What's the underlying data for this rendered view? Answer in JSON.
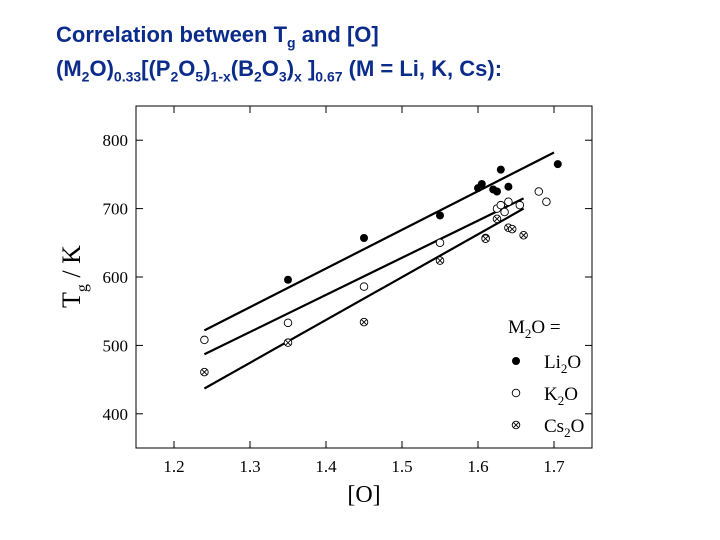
{
  "title": {
    "line1": {
      "main": "Correlation between T",
      "sub": "g",
      "after": " and [O]"
    },
    "line2": [
      {
        "t": "(M"
      },
      {
        "s": "2"
      },
      {
        "t": "O)"
      },
      {
        "s": "0.33"
      },
      {
        "t": "[(P"
      },
      {
        "s": "2"
      },
      {
        "t": "O"
      },
      {
        "s": "5"
      },
      {
        "t": ")"
      },
      {
        "s": "1-x"
      },
      {
        "t": "(B"
      },
      {
        "s": "2"
      },
      {
        "t": "O"
      },
      {
        "s": "3"
      },
      {
        "t": ")"
      },
      {
        "s": "x"
      },
      {
        "t": " ]"
      },
      {
        "s": "0.67"
      },
      {
        "t": "  (M = Li, K, Cs):"
      }
    ]
  },
  "chart_data": {
    "type": "scatter",
    "xlabel": "[O]",
    "ylabel": {
      "main": "T",
      "sub": "g",
      "after": " / K"
    },
    "xlim": [
      1.15,
      1.75
    ],
    "ylim": [
      350,
      850
    ],
    "xticks": [
      "1.2",
      "1.3",
      "1.4",
      "1.5",
      "1.6",
      "1.7"
    ],
    "yticks": [
      "400",
      "500",
      "600",
      "700",
      "800"
    ],
    "legend": {
      "title": {
        "main": "M",
        "sub": "2",
        "after": "O ="
      },
      "position": "bottom-right",
      "entries": [
        {
          "main": "Li",
          "sub": "2",
          "after": "O",
          "marker": "filled-circle"
        },
        {
          "main": "K",
          "sub": "2",
          "after": "O",
          "marker": "open-circle"
        },
        {
          "main": "Cs",
          "sub": "2",
          "after": "O",
          "marker": "crossed-circle"
        }
      ]
    },
    "series": [
      {
        "marker": "filled-circle",
        "points": [
          [
            1.35,
            596
          ],
          [
            1.45,
            657
          ],
          [
            1.55,
            690
          ],
          [
            1.6,
            730
          ],
          [
            1.605,
            736
          ],
          [
            1.62,
            728
          ],
          [
            1.625,
            725
          ],
          [
            1.63,
            757
          ],
          [
            1.64,
            732
          ],
          [
            1.705,
            765
          ]
        ],
        "fit": [
          [
            1.24,
            522
          ],
          [
            1.7,
            782
          ]
        ]
      },
      {
        "marker": "open-circle",
        "points": [
          [
            1.24,
            508
          ],
          [
            1.35,
            533
          ],
          [
            1.45,
            586
          ],
          [
            1.55,
            650
          ],
          [
            1.61,
            657
          ],
          [
            1.625,
            700
          ],
          [
            1.63,
            705
          ],
          [
            1.64,
            710
          ],
          [
            1.635,
            695
          ],
          [
            1.655,
            705
          ],
          [
            1.68,
            725
          ],
          [
            1.69,
            710
          ]
        ],
        "fit": [
          [
            1.24,
            487
          ],
          [
            1.66,
            715
          ]
        ]
      },
      {
        "marker": "crossed-circle",
        "points": [
          [
            1.24,
            461
          ],
          [
            1.35,
            504
          ],
          [
            1.45,
            534
          ],
          [
            1.55,
            624
          ],
          [
            1.61,
            656
          ],
          [
            1.625,
            685
          ],
          [
            1.64,
            672
          ],
          [
            1.645,
            670
          ],
          [
            1.66,
            661
          ]
        ],
        "fit": [
          [
            1.24,
            437
          ],
          [
            1.66,
            700
          ]
        ]
      }
    ]
  }
}
